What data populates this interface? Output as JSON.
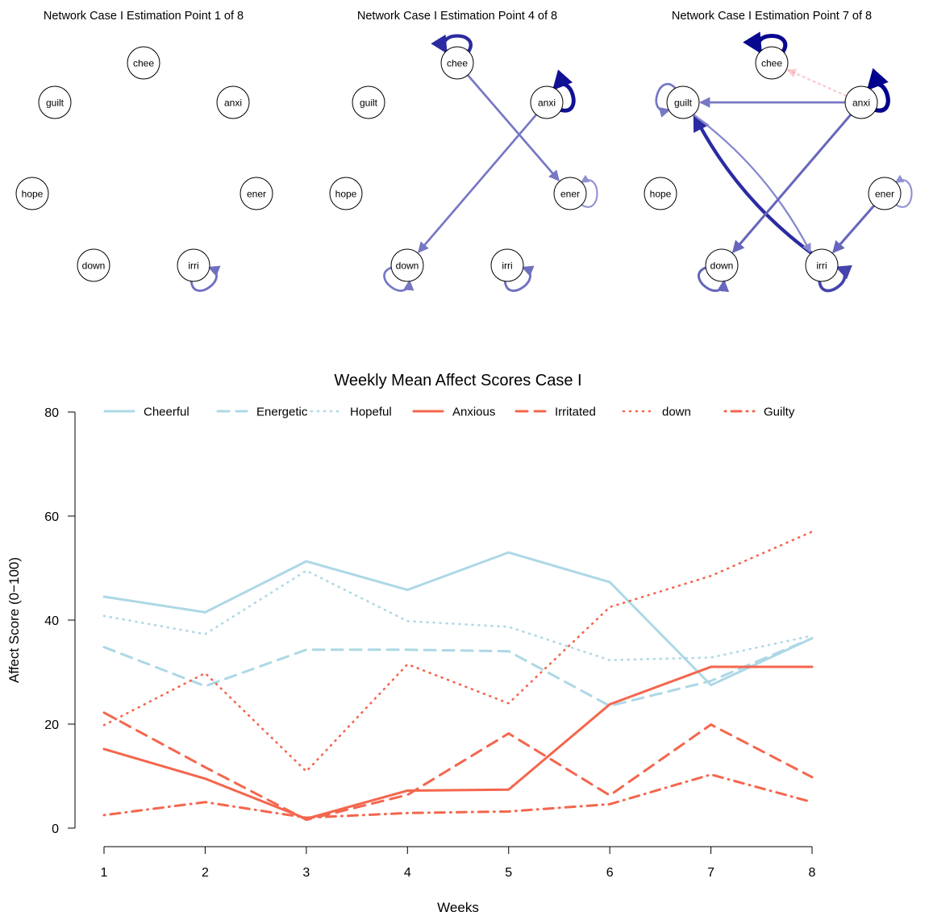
{
  "network_panels": [
    {
      "title": "Network Case I Estimation Point 1 of 8",
      "nodes": [
        "chee",
        "guilt",
        "anxi",
        "hope",
        "ener",
        "down",
        "irri"
      ],
      "edges": [
        {
          "from": "irri",
          "to": "irri",
          "weight": 0.35,
          "sign": "positive"
        }
      ]
    },
    {
      "title": "Network Case I Estimation Point 4 of 8",
      "nodes": [
        "chee",
        "guilt",
        "anxi",
        "hope",
        "ener",
        "down",
        "irri"
      ],
      "edges": [
        {
          "from": "chee",
          "to": "chee",
          "weight": 0.75,
          "sign": "positive"
        },
        {
          "from": "anxi",
          "to": "anxi",
          "weight": 0.9,
          "sign": "positive"
        },
        {
          "from": "chee",
          "to": "ener",
          "weight": 0.3,
          "sign": "positive"
        },
        {
          "from": "anxi",
          "to": "down",
          "weight": 0.3,
          "sign": "positive"
        },
        {
          "from": "ener",
          "to": "ener",
          "weight": 0.15,
          "sign": "positive"
        },
        {
          "from": "down",
          "to": "down",
          "weight": 0.3,
          "sign": "positive"
        },
        {
          "from": "irri",
          "to": "irri",
          "weight": 0.35,
          "sign": "positive"
        }
      ]
    },
    {
      "title": "Network Case I Estimation Point 7 of 8",
      "nodes": [
        "chee",
        "guilt",
        "anxi",
        "hope",
        "ener",
        "down",
        "irri"
      ],
      "edges": [
        {
          "from": "chee",
          "to": "chee",
          "weight": 0.95,
          "sign": "positive"
        },
        {
          "from": "anxi",
          "to": "anxi",
          "weight": 1.0,
          "sign": "positive"
        },
        {
          "from": "anxi",
          "to": "chee",
          "weight": 0.2,
          "sign": "negative"
        },
        {
          "from": "guilt",
          "to": "guilt",
          "weight": 0.3,
          "sign": "positive"
        },
        {
          "from": "anxi",
          "to": "guilt",
          "weight": 0.3,
          "sign": "positive"
        },
        {
          "from": "irri",
          "to": "guilt",
          "weight": 0.75,
          "sign": "positive"
        },
        {
          "from": "guilt",
          "to": "irri",
          "weight": 0.2,
          "sign": "positive"
        },
        {
          "from": "anxi",
          "to": "down",
          "weight": 0.4,
          "sign": "positive"
        },
        {
          "from": "ener",
          "to": "irri",
          "weight": 0.4,
          "sign": "positive"
        },
        {
          "from": "ener",
          "to": "ener",
          "weight": 0.15,
          "sign": "positive"
        },
        {
          "from": "down",
          "to": "down",
          "weight": 0.4,
          "sign": "positive"
        },
        {
          "from": "irri",
          "to": "irri",
          "weight": 0.6,
          "sign": "positive"
        }
      ]
    }
  ],
  "chart_data": {
    "type": "line",
    "title": "Weekly Mean Affect Scores Case I",
    "xlabel": "Weeks",
    "ylabel": "Affect Score (0−100)",
    "x": [
      1,
      2,
      3,
      4,
      5,
      6,
      7,
      8
    ],
    "xlim": [
      1,
      8
    ],
    "ylim": [
      0,
      80
    ],
    "yticks": [
      0,
      20,
      40,
      60,
      80
    ],
    "legend_position": "top",
    "colors": {
      "positive": "#add8e6",
      "negative": "#f4664d"
    },
    "series": [
      {
        "name": "Cheerful",
        "group": "positive",
        "dash": "solid",
        "values": [
          44.5,
          41.5,
          51.3,
          45.8,
          53.0,
          47.3,
          27.5,
          36.5
        ]
      },
      {
        "name": "Energetic",
        "group": "positive",
        "dash": "dashed",
        "values": [
          34.8,
          27.3,
          34.3,
          34.3,
          34.0,
          23.5,
          28.3,
          36.5
        ]
      },
      {
        "name": "Hopeful",
        "group": "positive",
        "dash": "dotted",
        "values": [
          40.8,
          37.3,
          49.5,
          39.8,
          38.7,
          32.3,
          32.8,
          37.0
        ]
      },
      {
        "name": "Anxious",
        "group": "negative",
        "dash": "solid",
        "values": [
          15.2,
          9.5,
          1.8,
          7.2,
          7.4,
          23.8,
          31.0,
          31.0
        ]
      },
      {
        "name": "Irritated",
        "group": "negative",
        "dash": "dashed",
        "values": [
          22.2,
          11.7,
          1.6,
          6.4,
          18.2,
          6.3,
          19.9,
          9.8
        ]
      },
      {
        "name": "down",
        "group": "negative",
        "dash": "dotted",
        "values": [
          19.8,
          29.8,
          10.9,
          31.5,
          24.0,
          42.5,
          48.5,
          57.0
        ]
      },
      {
        "name": "Guilty",
        "group": "negative",
        "dash": "dotdash",
        "values": [
          2.5,
          5.0,
          2.0,
          2.9,
          3.2,
          4.6,
          10.3,
          5.0
        ]
      }
    ]
  }
}
